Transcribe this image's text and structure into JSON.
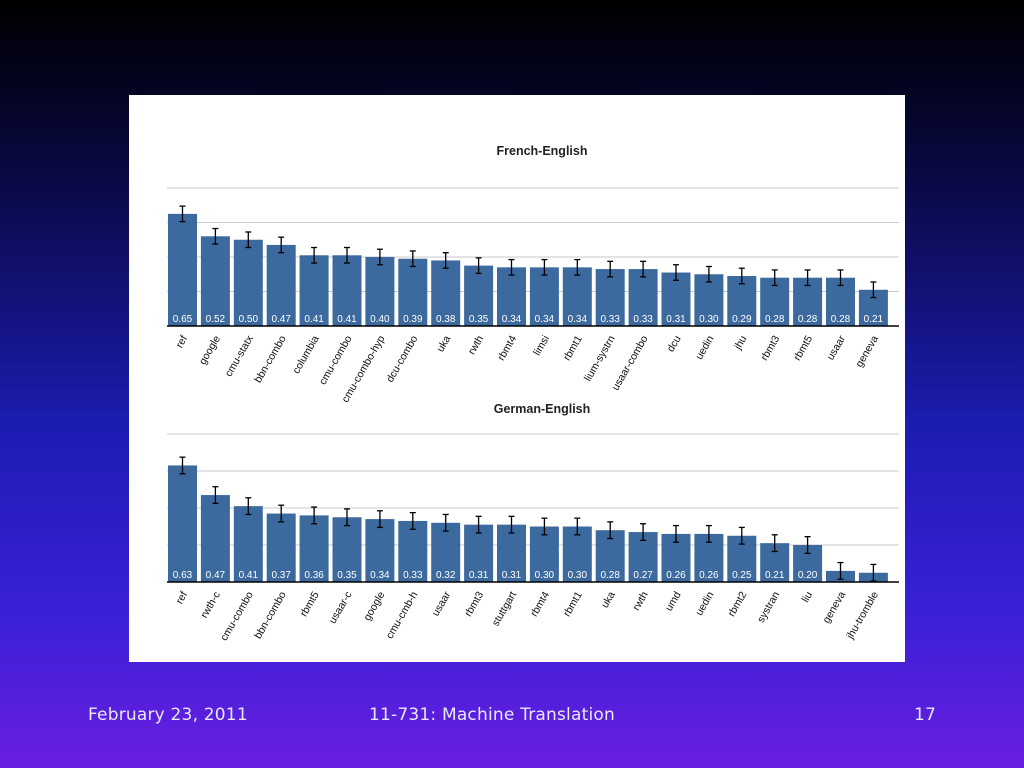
{
  "footer": {
    "date": "February 23, 2011",
    "title": "11-731: Machine Translation",
    "page": "17"
  },
  "colors": {
    "bar": "#3d6a9e",
    "grid": "#c8c8c8",
    "axis": "#000000",
    "error_bar": "#000000"
  },
  "chart_data": [
    {
      "type": "bar",
      "title": "French-English",
      "grid": true,
      "error_bars": true,
      "categories": [
        "ref",
        "google",
        "cmu-statx",
        "bbn-combo",
        "columbia",
        "cmu-combo",
        "cmu-combo-hyp",
        "dcu-combo",
        "uka",
        "rwth",
        "rbmt4",
        "limsi",
        "rbmt1",
        "lium-systrn",
        "usaar-combo",
        "dcu",
        "uedin",
        "jhu",
        "rbmt3",
        "rbmt5",
        "usaar",
        "geneva"
      ],
      "values": [
        0.65,
        0.52,
        0.5,
        0.47,
        0.41,
        0.41,
        0.4,
        0.39,
        0.38,
        0.35,
        0.34,
        0.34,
        0.34,
        0.33,
        0.33,
        0.31,
        0.3,
        0.29,
        0.28,
        0.28,
        0.28,
        0.21
      ],
      "value_labels": [
        "0.65",
        "0.52",
        "0.50",
        "0.47",
        "0.41",
        "0.41",
        "0.40",
        "0.39",
        "0.38",
        "0.35",
        "0.34",
        "0.34",
        "0.34",
        "0.33",
        "0.33",
        "0.31",
        "0.30",
        "0.29",
        "0.28",
        "0.28",
        "0.28",
        "0.21"
      ]
    },
    {
      "type": "bar",
      "title": "German-English",
      "grid": true,
      "error_bars": true,
      "categories": [
        "ref",
        "rwth-c",
        "cmu-combo",
        "bbn-combo",
        "rbmt5",
        "usaar-c",
        "google",
        "cmu-cmb-h",
        "usaar",
        "rbmt3",
        "stuttgart",
        "rbmt4",
        "rbmt1",
        "uka",
        "rwth",
        "umd",
        "uedin",
        "rbmt2",
        "systran",
        "liu",
        "geneva",
        "jhu-tromble"
      ],
      "values": [
        0.63,
        0.47,
        0.41,
        0.37,
        0.36,
        0.35,
        0.34,
        0.33,
        0.32,
        0.31,
        0.31,
        0.3,
        0.3,
        0.28,
        0.27,
        0.26,
        0.26,
        0.25,
        0.21,
        0.2,
        0.06,
        0.05
      ],
      "value_labels": [
        "0.63",
        "0.47",
        "0.41",
        "0.37",
        "0.36",
        "0.35",
        "0.34",
        "0.33",
        "0.32",
        "0.31",
        "0.31",
        "0.30",
        "0.30",
        "0.28",
        "0.27",
        "0.26",
        "0.26",
        "0.25",
        "0.21",
        "0.20",
        "",
        ""
      ]
    }
  ]
}
